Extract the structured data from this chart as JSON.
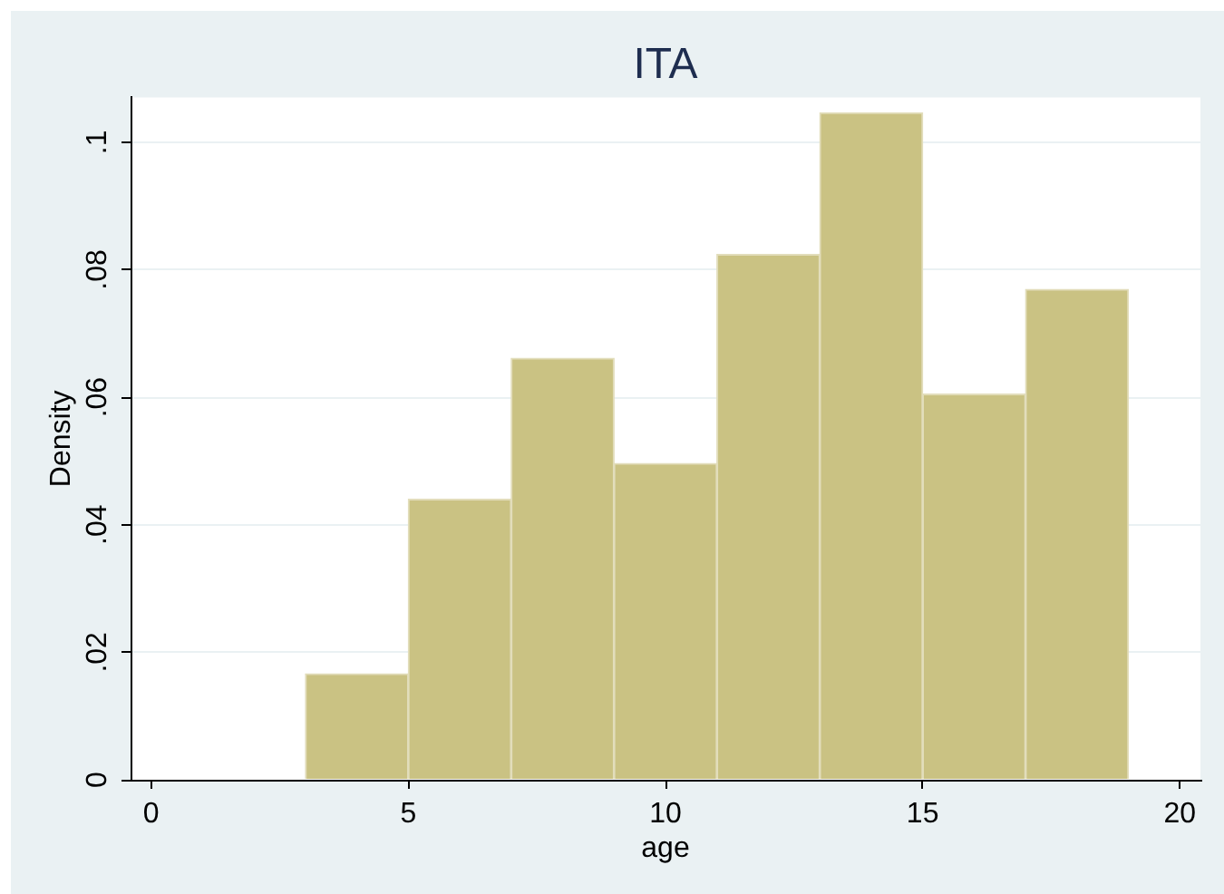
{
  "chart_data": {
    "type": "histogram",
    "title": "ITA",
    "xlabel": "age",
    "ylabel": "Density",
    "bins": [
      3,
      5,
      7,
      9,
      11,
      13,
      15,
      17,
      19
    ],
    "values": [
      0.0166,
      0.044,
      0.0661,
      0.0496,
      0.0824,
      0.1046,
      0.0605,
      0.0769
    ],
    "color": "#cac283",
    "xlim": [
      -0.4,
      20.4
    ],
    "xticks": [
      0,
      5,
      10,
      15,
      20
    ],
    "ylim": [
      0,
      0.107
    ],
    "yticks": [
      0,
      {
        "value": 0.02,
        "label": ".02"
      },
      {
        "value": 0.04,
        "label": ".04"
      },
      {
        "value": 0.06,
        "label": ".06"
      },
      {
        "value": 0.08,
        "label": ".08"
      },
      {
        "value": 0.1,
        "label": ".1"
      }
    ],
    "grid": "y"
  }
}
